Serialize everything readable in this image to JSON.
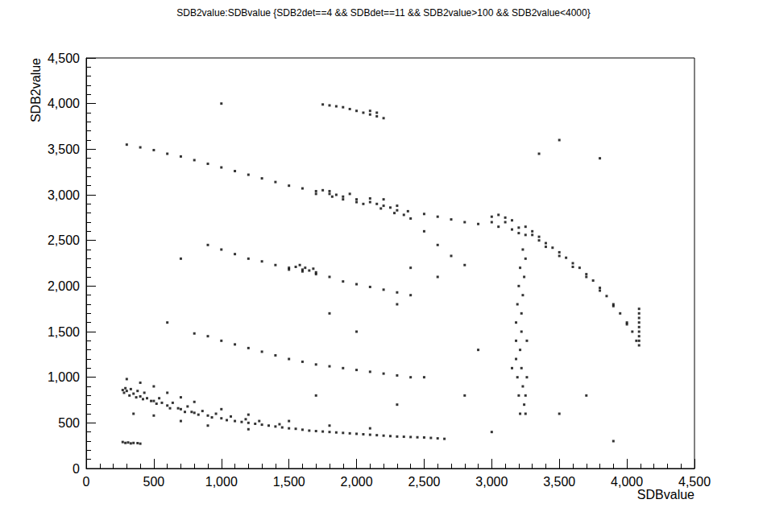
{
  "chart_data": {
    "type": "scatter",
    "title": "SDB2value:SDBvalue {SDB2det==4 && SDBdet==11 && SDB2value>100 && SDB2value<4000}",
    "x_label": "SDBvalue",
    "y_label": "SDB2value",
    "xlim": [
      0,
      4500
    ],
    "ylim": [
      0,
      4500
    ],
    "xticks": [
      0,
      500,
      1000,
      1500,
      2000,
      2500,
      3000,
      3500,
      4000,
      4500
    ],
    "yticks": [
      0,
      500,
      1000,
      1500,
      2000,
      2500,
      3000,
      3500,
      4000,
      4500
    ],
    "grid": false,
    "marker": "square",
    "series": [
      {
        "color": "#000000",
        "values": [
          [
            270,
            860
          ],
          [
            280,
            830
          ],
          [
            290,
            880
          ],
          [
            300,
            850
          ],
          [
            320,
            800
          ],
          [
            330,
            870
          ],
          [
            350,
            820
          ],
          [
            370,
            780
          ],
          [
            380,
            850
          ],
          [
            400,
            790
          ],
          [
            420,
            760
          ],
          [
            430,
            830
          ],
          [
            450,
            770
          ],
          [
            480,
            740
          ],
          [
            500,
            740
          ],
          [
            520,
            710
          ],
          [
            540,
            770
          ],
          [
            560,
            720
          ],
          [
            600,
            690
          ],
          [
            620,
            660
          ],
          [
            640,
            720
          ],
          [
            680,
            660
          ],
          [
            700,
            650
          ],
          [
            730,
            620
          ],
          [
            750,
            680
          ],
          [
            780,
            620
          ],
          [
            800,
            610
          ],
          [
            830,
            590
          ],
          [
            860,
            630
          ],
          [
            900,
            580
          ],
          [
            930,
            560
          ],
          [
            960,
            600
          ],
          [
            1000,
            550
          ],
          [
            1040,
            530
          ],
          [
            1070,
            570
          ],
          [
            1100,
            520
          ],
          [
            1150,
            510
          ],
          [
            1180,
            540
          ],
          [
            1200,
            500
          ],
          [
            1250,
            490
          ],
          [
            1280,
            520
          ],
          [
            1300,
            480
          ],
          [
            1350,
            470
          ],
          [
            1400,
            460
          ],
          [
            1430,
            485
          ],
          [
            1450,
            450
          ],
          [
            1500,
            440
          ],
          [
            1550,
            435
          ],
          [
            1600,
            425
          ],
          [
            1650,
            415
          ],
          [
            1700,
            410
          ],
          [
            1750,
            405
          ],
          [
            1800,
            400
          ],
          [
            1850,
            395
          ],
          [
            1900,
            390
          ],
          [
            1950,
            385
          ],
          [
            2000,
            380
          ],
          [
            2050,
            375
          ],
          [
            2100,
            370
          ],
          [
            2150,
            365
          ],
          [
            2200,
            360
          ],
          [
            2250,
            355
          ],
          [
            2300,
            350
          ],
          [
            2350,
            348
          ],
          [
            2400,
            345
          ],
          [
            2450,
            342
          ],
          [
            2500,
            340
          ],
          [
            2550,
            335
          ],
          [
            2600,
            330
          ],
          [
            2650,
            325
          ],
          [
            300,
            980
          ],
          [
            400,
            940
          ],
          [
            500,
            900
          ],
          [
            600,
            830
          ],
          [
            700,
            780
          ],
          [
            800,
            730
          ],
          [
            1000,
            650
          ],
          [
            1200,
            590
          ],
          [
            1500,
            520
          ],
          [
            1800,
            470
          ],
          [
            2100,
            440
          ],
          [
            350,
            600
          ],
          [
            500,
            580
          ],
          [
            700,
            520
          ],
          [
            900,
            470
          ],
          [
            1200,
            430
          ],
          [
            270,
            290
          ],
          [
            290,
            280
          ],
          [
            310,
            285
          ],
          [
            330,
            275
          ],
          [
            350,
            280
          ],
          [
            380,
            278
          ],
          [
            400,
            272
          ],
          [
            800,
            1480
          ],
          [
            900,
            1450
          ],
          [
            1000,
            1400
          ],
          [
            1100,
            1360
          ],
          [
            1200,
            1320
          ],
          [
            1300,
            1280
          ],
          [
            1400,
            1240
          ],
          [
            1500,
            1200
          ],
          [
            1600,
            1170
          ],
          [
            1700,
            1140
          ],
          [
            1800,
            1120
          ],
          [
            1900,
            1100
          ],
          [
            2000,
            1080
          ],
          [
            2100,
            1060
          ],
          [
            2200,
            1040
          ],
          [
            2300,
            1020
          ],
          [
            2400,
            1000
          ],
          [
            900,
            2450
          ],
          [
            1000,
            2400
          ],
          [
            1100,
            2350
          ],
          [
            1200,
            2300
          ],
          [
            1300,
            2270
          ],
          [
            1400,
            2230
          ],
          [
            1500,
            2200
          ],
          [
            1600,
            2180
          ],
          [
            1700,
            2150
          ],
          [
            1800,
            2100
          ],
          [
            1900,
            2050
          ],
          [
            2000,
            2020
          ],
          [
            2100,
            1990
          ],
          [
            2200,
            1960
          ],
          [
            2300,
            1930
          ],
          [
            2400,
            1900
          ],
          [
            1500,
            2180
          ],
          [
            1550,
            2210
          ],
          [
            1600,
            2160
          ],
          [
            1620,
            2200
          ],
          [
            1650,
            2170
          ],
          [
            1700,
            2130
          ],
          [
            1580,
            2230
          ],
          [
            1680,
            2190
          ],
          [
            300,
            3550
          ],
          [
            400,
            3520
          ],
          [
            500,
            3490
          ],
          [
            600,
            3450
          ],
          [
            700,
            3420
          ],
          [
            800,
            3380
          ],
          [
            900,
            3340
          ],
          [
            1000,
            3300
          ],
          [
            1100,
            3260
          ],
          [
            1200,
            3220
          ],
          [
            1300,
            3180
          ],
          [
            1400,
            3140
          ],
          [
            1500,
            3100
          ],
          [
            1600,
            3070
          ],
          [
            1700,
            3040
          ],
          [
            1800,
            3010
          ],
          [
            1900,
            2980
          ],
          [
            2000,
            2950
          ],
          [
            2100,
            2920
          ],
          [
            2200,
            2880
          ],
          [
            2300,
            2830
          ],
          [
            2400,
            2740
          ],
          [
            2500,
            2600
          ],
          [
            2600,
            2450
          ],
          [
            2700,
            2330
          ],
          [
            2800,
            2230
          ],
          [
            1700,
            3010
          ],
          [
            1750,
            3050
          ],
          [
            1800,
            3040
          ],
          [
            1820,
            2980
          ],
          [
            1850,
            3000
          ],
          [
            1900,
            2950
          ],
          [
            1950,
            3010
          ],
          [
            2000,
            2920
          ],
          [
            2050,
            2900
          ],
          [
            2100,
            2960
          ],
          [
            2150,
            2900
          ],
          [
            2180,
            2850
          ],
          [
            2200,
            2950
          ],
          [
            2250,
            2860
          ],
          [
            2280,
            2800
          ],
          [
            2300,
            2880
          ],
          [
            2350,
            2780
          ],
          [
            2380,
            2820
          ],
          [
            2500,
            2790
          ],
          [
            2600,
            2760
          ],
          [
            2700,
            2730
          ],
          [
            2800,
            2700
          ],
          [
            2900,
            2680
          ],
          [
            1750,
            3990
          ],
          [
            1800,
            3980
          ],
          [
            1850,
            3970
          ],
          [
            1900,
            3960
          ],
          [
            1950,
            3940
          ],
          [
            2000,
            3920
          ],
          [
            2050,
            3900
          ],
          [
            2100,
            3880
          ],
          [
            2150,
            3860
          ],
          [
            2200,
            3840
          ],
          [
            2100,
            3920
          ],
          [
            2150,
            3900
          ],
          [
            3000,
            2760
          ],
          [
            3100,
            2700
          ],
          [
            3200,
            2640
          ],
          [
            3300,
            2560
          ],
          [
            3400,
            2470
          ],
          [
            3500,
            2370
          ],
          [
            3600,
            2250
          ],
          [
            3700,
            2130
          ],
          [
            3800,
            1980
          ],
          [
            3900,
            1800
          ],
          [
            4000,
            1600
          ],
          [
            4070,
            1400
          ],
          [
            3000,
            2700
          ],
          [
            3050,
            2780
          ],
          [
            3050,
            2650
          ],
          [
            3100,
            2750
          ],
          [
            3150,
            2620
          ],
          [
            3150,
            2720
          ],
          [
            3200,
            2580
          ],
          [
            3250,
            2650
          ],
          [
            3250,
            2560
          ],
          [
            3300,
            2600
          ],
          [
            3350,
            2500
          ],
          [
            3350,
            2540
          ],
          [
            3400,
            2430
          ],
          [
            3450,
            2420
          ],
          [
            3500,
            2330
          ],
          [
            3550,
            2310
          ],
          [
            3600,
            2210
          ],
          [
            3650,
            2200
          ],
          [
            3700,
            2100
          ],
          [
            3750,
            2060
          ],
          [
            3800,
            1950
          ],
          [
            3850,
            1890
          ],
          [
            3900,
            1780
          ],
          [
            3950,
            1700
          ],
          [
            4000,
            1580
          ],
          [
            4040,
            1500
          ],
          [
            4090,
            1350
          ],
          [
            4090,
            1400
          ],
          [
            4090,
            1450
          ],
          [
            4090,
            1500
          ],
          [
            4090,
            1550
          ],
          [
            4090,
            1600
          ],
          [
            4090,
            1650
          ],
          [
            4090,
            1700
          ],
          [
            4090,
            1750
          ],
          [
            3230,
            2400
          ],
          [
            3210,
            2200
          ],
          [
            3200,
            2000
          ],
          [
            3190,
            1800
          ],
          [
            3180,
            1600
          ],
          [
            3180,
            1400
          ],
          [
            3180,
            1200
          ],
          [
            3190,
            1000
          ],
          [
            3200,
            800
          ],
          [
            3210,
            600
          ],
          [
            3250,
            2300
          ],
          [
            3240,
            2100
          ],
          [
            3230,
            1900
          ],
          [
            3220,
            1700
          ],
          [
            3220,
            1500
          ],
          [
            3210,
            1300
          ],
          [
            3220,
            1100
          ],
          [
            3230,
            900
          ],
          [
            3240,
            700
          ],
          [
            3260,
            1000
          ],
          [
            3250,
            800
          ],
          [
            3150,
            1100
          ],
          [
            3260,
            1400
          ],
          [
            3250,
            600
          ],
          [
            1000,
            4000
          ],
          [
            2400,
            2200
          ],
          [
            2600,
            2100
          ],
          [
            2300,
            1800
          ],
          [
            2000,
            1500
          ],
          [
            2500,
            1000
          ],
          [
            2800,
            800
          ],
          [
            3500,
            600
          ],
          [
            3800,
            3400
          ],
          [
            3350,
            3450
          ],
          [
            3500,
            3600
          ],
          [
            1800,
            1700
          ],
          [
            600,
            1600
          ],
          [
            700,
            2300
          ],
          [
            2900,
            1300
          ],
          [
            3700,
            800
          ],
          [
            3900,
            300
          ],
          [
            3000,
            400
          ],
          [
            2300,
            700
          ],
          [
            1700,
            800
          ]
        ]
      }
    ]
  }
}
